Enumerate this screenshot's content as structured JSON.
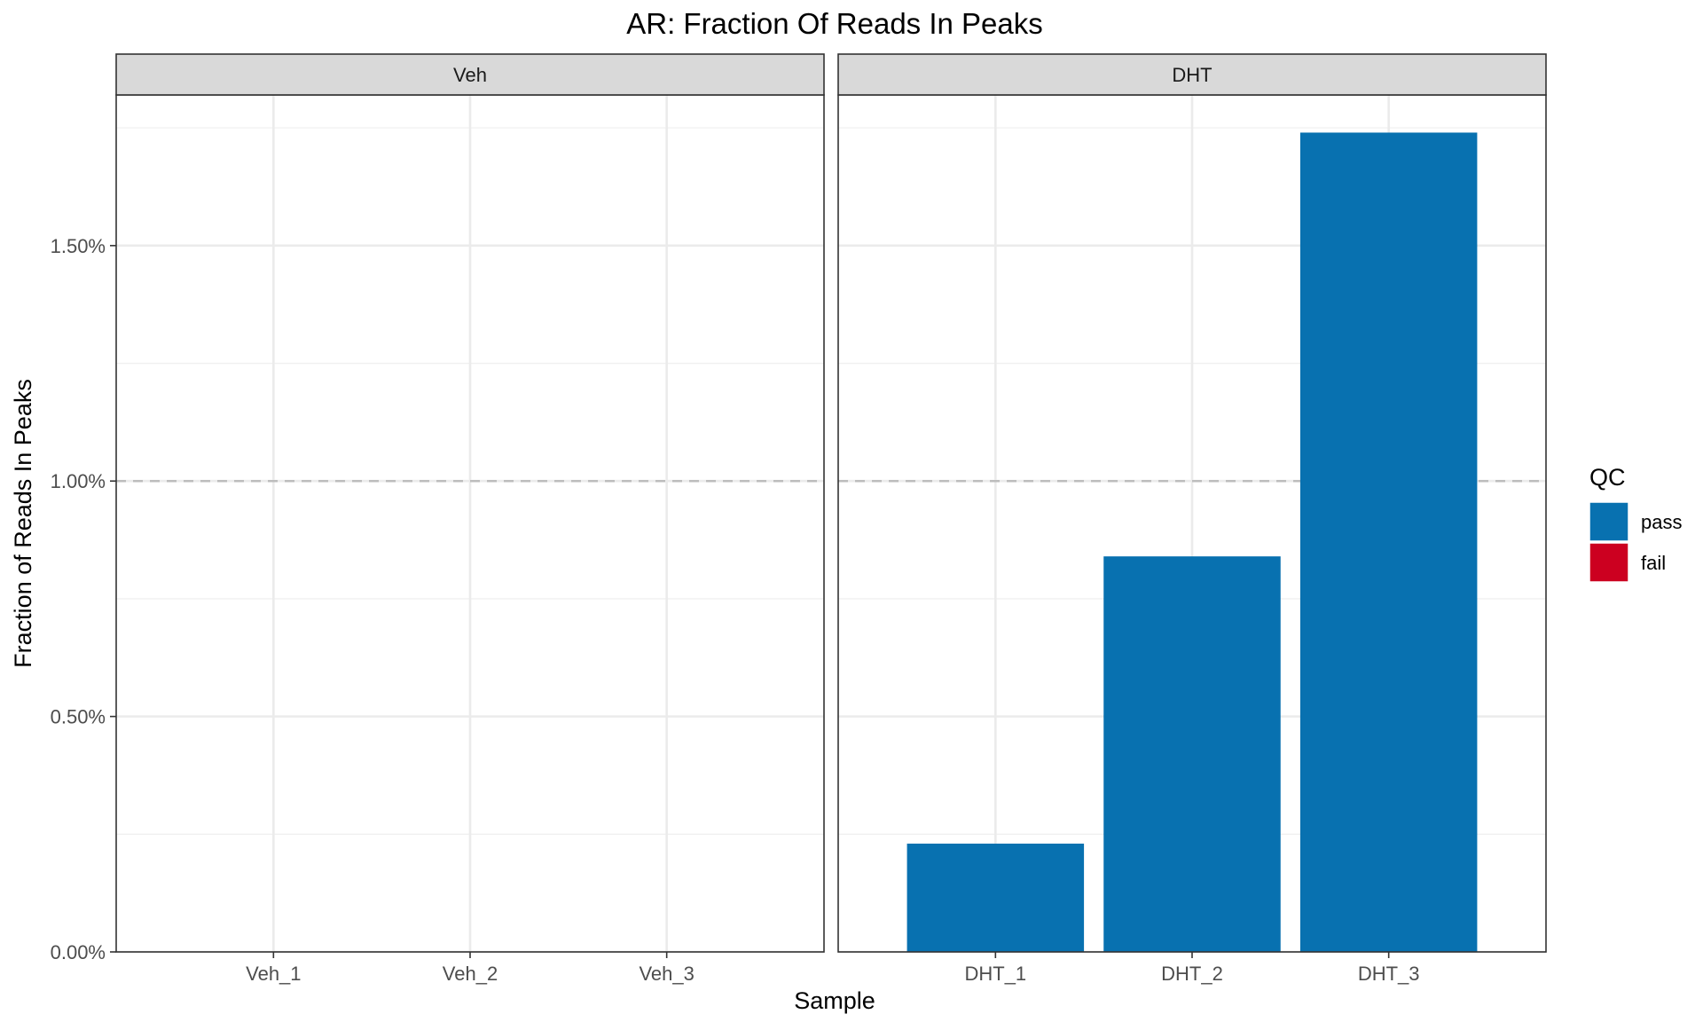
{
  "chart_data": {
    "type": "bar",
    "title": "AR: Fraction Of Reads In Peaks",
    "xlabel": "Sample",
    "ylabel": "Fraction of Reads In Peaks",
    "ylim": [
      0,
      1.82
    ],
    "y_ticks": [
      {
        "value": 0,
        "label": "0.00%"
      },
      {
        "value": 0.5,
        "label": "0.50%"
      },
      {
        "value": 1.0,
        "label": "1.00%"
      },
      {
        "value": 1.5,
        "label": "1.50%"
      }
    ],
    "reference_line": {
      "value": 1.0,
      "style": "dashed",
      "color": "#bdbdbd"
    },
    "grid": true,
    "facets": [
      {
        "name": "Veh",
        "categories": [
          "Veh_1",
          "Veh_2",
          "Veh_3"
        ],
        "values": [
          null,
          null,
          null
        ],
        "qc": [
          null,
          null,
          null
        ]
      },
      {
        "name": "DHT",
        "categories": [
          "DHT_1",
          "DHT_2",
          "DHT_3"
        ],
        "values": [
          0.23,
          0.84,
          1.74
        ],
        "qc": [
          "pass",
          "pass",
          "pass"
        ]
      }
    ],
    "legend": {
      "title": "QC",
      "position": "right",
      "items": [
        {
          "label": "pass",
          "color": "#0871b0"
        },
        {
          "label": "fail",
          "color": "#cc0020"
        }
      ]
    }
  }
}
